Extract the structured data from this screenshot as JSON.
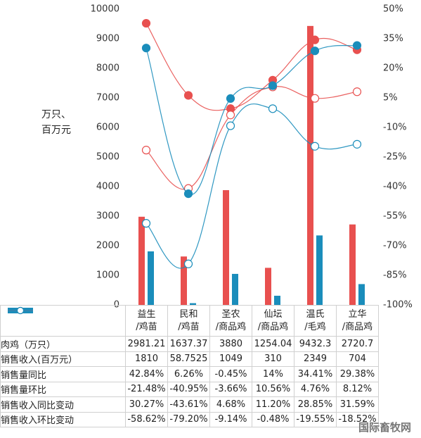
{
  "chart_data": {
    "type": "combo",
    "y_label": "万只、百万元",
    "watermark": "国际畜牧网",
    "categories": [
      "益生\n/鸡苗",
      "民和\n/鸡苗",
      "圣农\n/商品鸡",
      "仙坛\n/商品鸡",
      "温氏\n/毛鸡",
      "立华\n/商品鸡"
    ],
    "ylim": [
      0,
      10000
    ],
    "yticks": [
      0,
      1000,
      2000,
      3000,
      4000,
      5000,
      6000,
      7000,
      8000,
      9000,
      10000
    ],
    "y2lim": [
      -100,
      50
    ],
    "y2ticks": [
      {
        "value": 50,
        "label": "50%"
      },
      {
        "value": 35,
        "label": "35%"
      },
      {
        "value": 20,
        "label": "20%"
      },
      {
        "value": 5,
        "label": "5%"
      },
      {
        "value": -10,
        "label": "-10%"
      },
      {
        "value": -25,
        "label": "-25%"
      },
      {
        "value": -40,
        "label": "-40%"
      },
      {
        "value": -55,
        "label": "-55%"
      },
      {
        "value": -70,
        "label": "-70%"
      },
      {
        "value": -85,
        "label": "-85%"
      },
      {
        "value": -100,
        "label": "-100%"
      }
    ],
    "series": [
      {
        "name": "肉鸡（万只）",
        "type": "bar",
        "color": "#e8504f",
        "values": [
          2981.21,
          1637.37,
          3880,
          1254.04,
          9432.3,
          2720.7
        ]
      },
      {
        "name": "销售收入(百万元）",
        "type": "bar",
        "color": "#1a8dbb",
        "values": [
          1810,
          58.7525,
          1049,
          310,
          2349,
          704
        ]
      },
      {
        "name": "销售量同比",
        "type": "line",
        "axis": "y2",
        "marker": "filled",
        "color": "#e8504f",
        "values": [
          42.84,
          6.26,
          -0.45,
          14,
          34.41,
          29.38
        ],
        "value_labels": [
          "42.84%",
          "6.26%",
          "-0.45%",
          "14%",
          "34.41%",
          "29.38%"
        ]
      },
      {
        "name": "销售量环比",
        "type": "line",
        "axis": "y2",
        "marker": "hollow",
        "color": "#e8504f",
        "values": [
          -21.48,
          -40.95,
          -3.66,
          10.56,
          4.76,
          8.12
        ],
        "value_labels": [
          "-21.48%",
          "-40.95%",
          "-3.66%",
          "10.56%",
          "4.76%",
          "8.12%"
        ]
      },
      {
        "name": "销售收入同比变动",
        "type": "line",
        "axis": "y2",
        "marker": "filled",
        "color": "#1a8dbb",
        "values": [
          30.27,
          -43.61,
          4.68,
          11.2,
          28.85,
          31.59
        ],
        "value_labels": [
          "30.27%",
          "-43.61%",
          "4.68%",
          "11.20%",
          "28.85%",
          "31.59%"
        ]
      },
      {
        "name": "销售收入环比变动",
        "type": "line",
        "axis": "y2",
        "marker": "hollow",
        "color": "#1a8dbb",
        "values": [
          -58.62,
          -79.2,
          -9.14,
          -0.48,
          -19.55,
          -18.52
        ],
        "value_labels": [
          "-58.62%",
          "-79.20%",
          "-9.14%",
          "-0.48%",
          "-19.55%",
          "-18.52%"
        ]
      }
    ]
  }
}
